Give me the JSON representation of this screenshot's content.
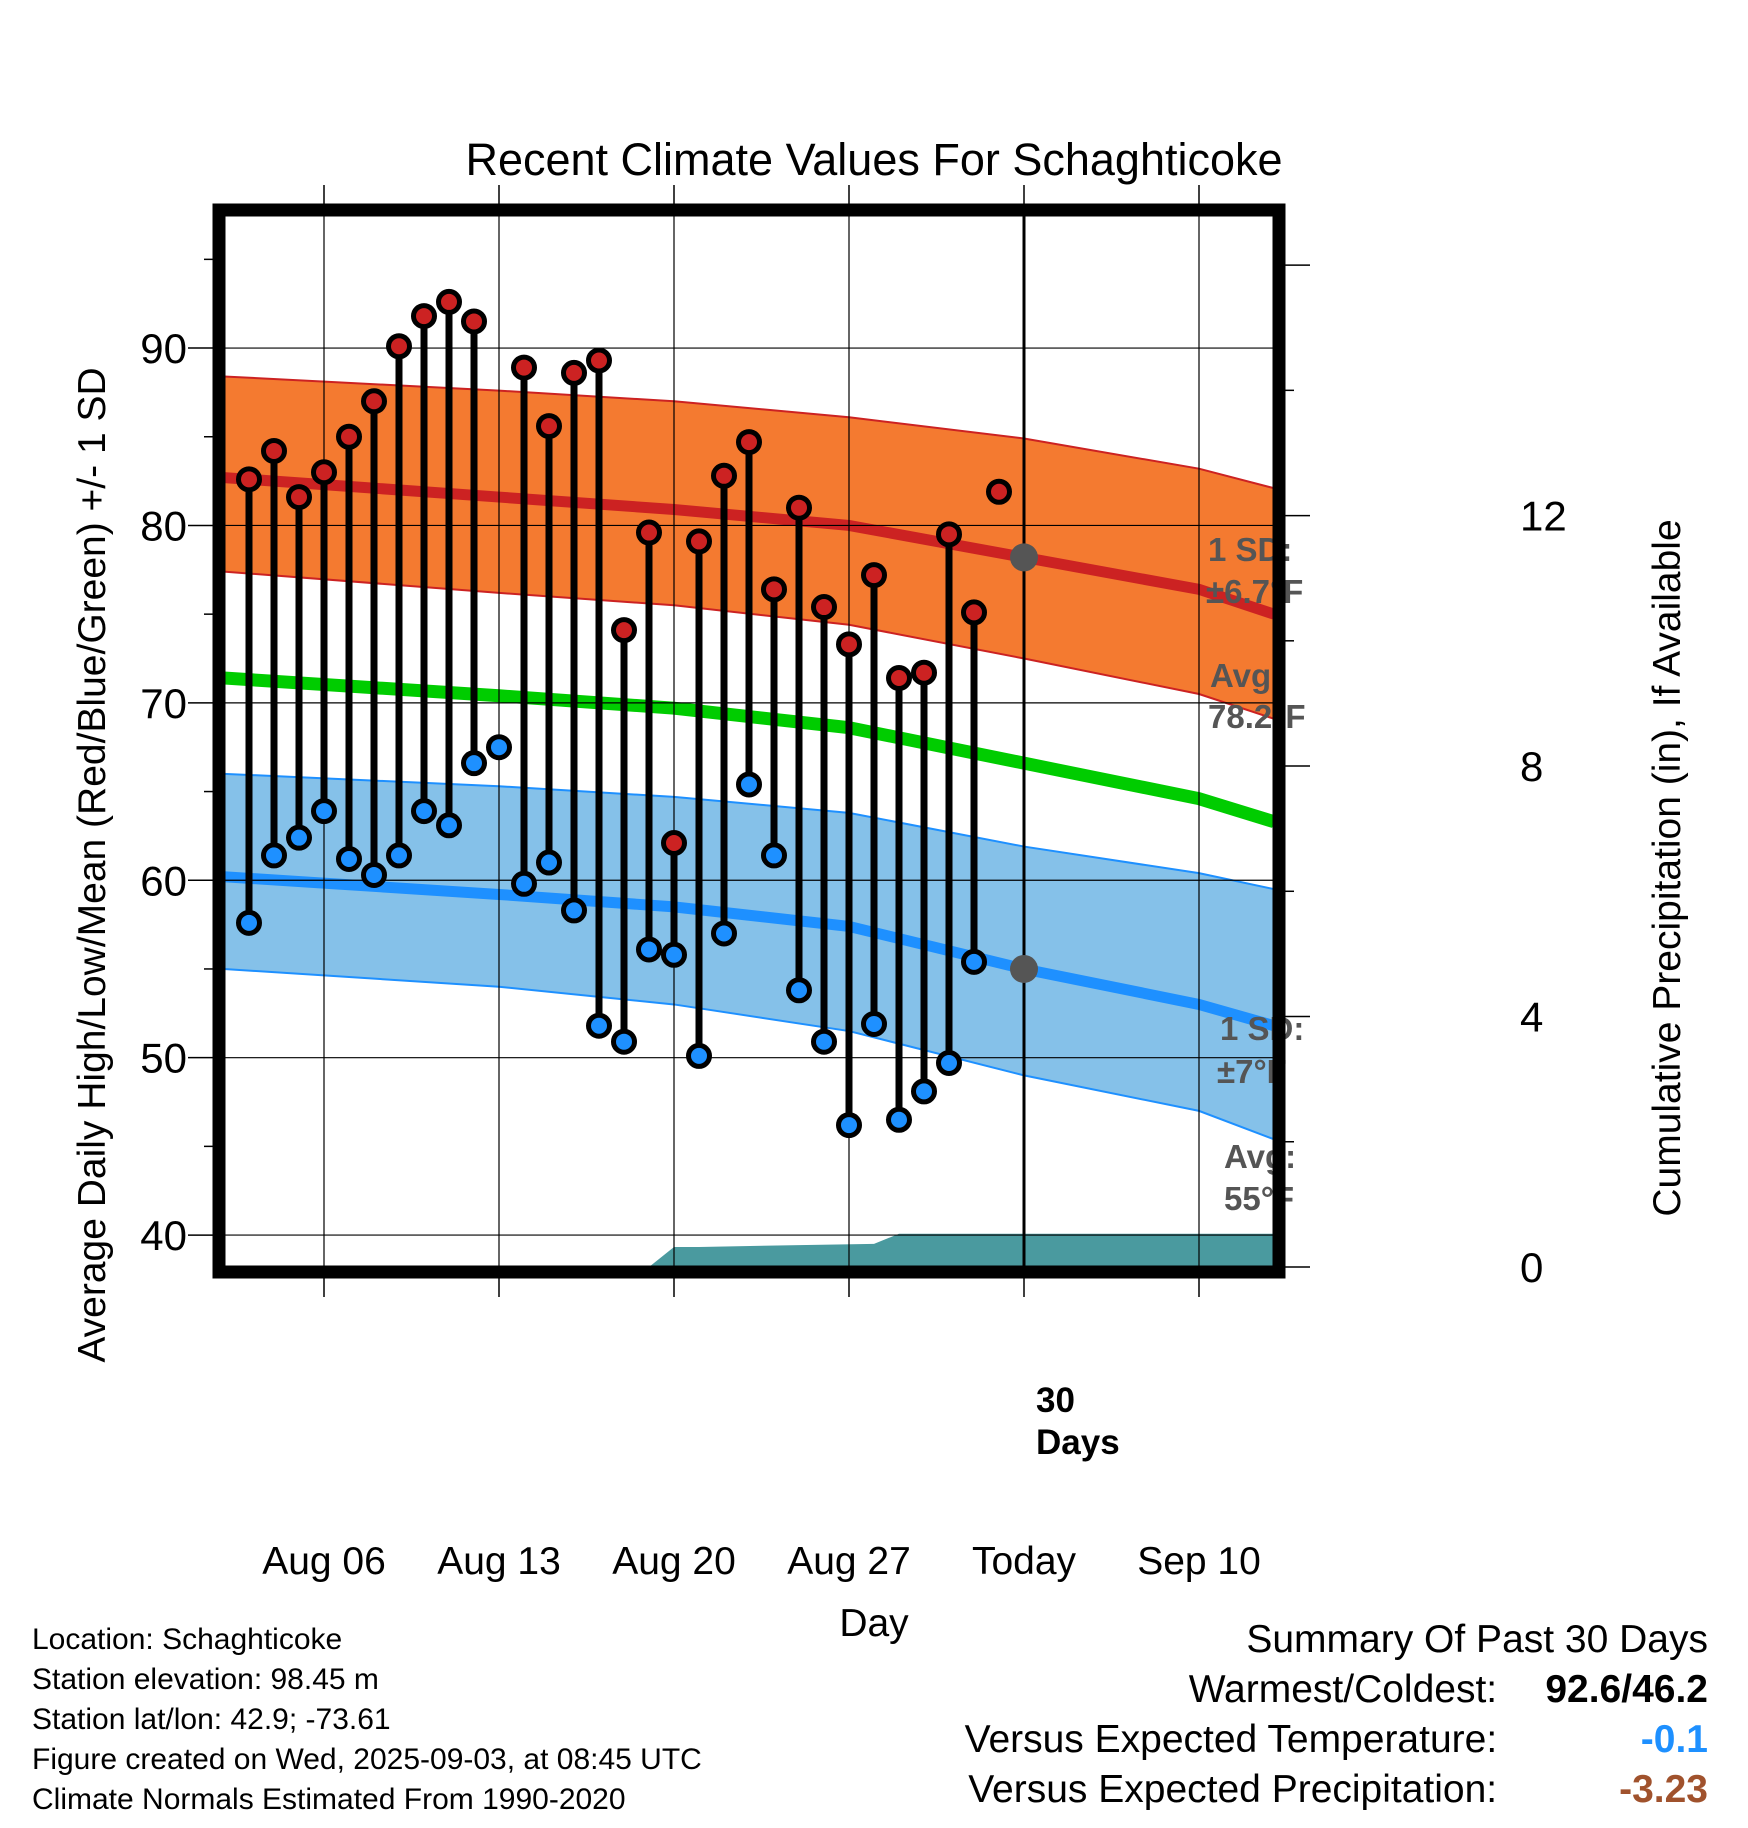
{
  "chart_data": {
    "type": "line",
    "title": "Recent Climate Values For Schaghticoke",
    "xlabel": "Day",
    "ylabel": "Average Daily High/Low/Mean (Red/Blue/Green) +/- 1 SD",
    "y2label": "Cumulative Precipitation (in), If Available",
    "ylim": [
      38.2,
      97.5
    ],
    "y_ticks": [
      40,
      50,
      60,
      70,
      80,
      90
    ],
    "y2lim": [
      0,
      16.8
    ],
    "y2_ticks": [
      0,
      4,
      8,
      12
    ],
    "xlim": [
      "2025-08-02",
      "2025-09-13"
    ],
    "x_ticks": [
      {
        "date": "2025-08-06",
        "label": "Aug 06"
      },
      {
        "date": "2025-08-13",
        "label": "Aug 13"
      },
      {
        "date": "2025-08-20",
        "label": "Aug 20"
      },
      {
        "date": "2025-08-27",
        "label": "Aug 27"
      },
      {
        "date": "2025-09-03",
        "label": "Today"
      },
      {
        "date": "2025-09-10",
        "label": "Sep 10"
      }
    ],
    "grid": true,
    "today": "2025-09-03",
    "today_marker": {
      "line1": "30",
      "line2": "Days"
    },
    "series": [
      {
        "name": "High",
        "color": "#cc2222",
        "dates": [
          "2025-08-03",
          "2025-08-04",
          "2025-08-05",
          "2025-08-06",
          "2025-08-07",
          "2025-08-08",
          "2025-08-09",
          "2025-08-10",
          "2025-08-11",
          "2025-08-12",
          "2025-08-13",
          "2025-08-14",
          "2025-08-15",
          "2025-08-16",
          "2025-08-17",
          "2025-08-18",
          "2025-08-19",
          "2025-08-20",
          "2025-08-21",
          "2025-08-22",
          "2025-08-23",
          "2025-08-24",
          "2025-08-25",
          "2025-08-26",
          "2025-08-27",
          "2025-08-28",
          "2025-08-29",
          "2025-08-30",
          "2025-08-31",
          "2025-09-01",
          "2025-09-02"
        ],
        "values": [
          82.6,
          84.2,
          81.6,
          83.0,
          85.0,
          87.0,
          90.1,
          91.8,
          92.6,
          91.5,
          null,
          88.9,
          85.6,
          88.6,
          89.3,
          74.1,
          79.6,
          62.1,
          79.1,
          82.8,
          84.7,
          76.4,
          81.0,
          75.4,
          73.3,
          77.2,
          71.4,
          71.7,
          79.5,
          75.1,
          81.9
        ]
      },
      {
        "name": "Low",
        "color": "#1e90ff",
        "dates": [
          "2025-08-03",
          "2025-08-04",
          "2025-08-05",
          "2025-08-06",
          "2025-08-07",
          "2025-08-08",
          "2025-08-09",
          "2025-08-10",
          "2025-08-11",
          "2025-08-12",
          "2025-08-13",
          "2025-08-14",
          "2025-08-15",
          "2025-08-16",
          "2025-08-17",
          "2025-08-18",
          "2025-08-19",
          "2025-08-20",
          "2025-08-21",
          "2025-08-22",
          "2025-08-23",
          "2025-08-24",
          "2025-08-25",
          "2025-08-26",
          "2025-08-27",
          "2025-08-28",
          "2025-08-29",
          "2025-08-30",
          "2025-08-31",
          "2025-09-01",
          "2025-09-02"
        ],
        "values": [
          57.6,
          61.4,
          62.4,
          63.9,
          61.2,
          60.3,
          61.4,
          63.9,
          63.1,
          66.6,
          67.5,
          59.8,
          61.0,
          58.3,
          51.8,
          50.9,
          56.1,
          55.8,
          50.1,
          57.0,
          65.4,
          61.4,
          53.8,
          50.9,
          46.2,
          51.9,
          46.5,
          48.1,
          49.7,
          55.4,
          null
        ]
      },
      {
        "name": "Normal High",
        "color": "#cc2222",
        "dates": [
          "2025-08-02",
          "2025-08-13",
          "2025-08-20",
          "2025-08-27",
          "2025-09-03",
          "2025-09-10",
          "2025-09-13"
        ],
        "values": [
          82.7,
          81.6,
          80.9,
          80.0,
          78.2,
          76.4,
          75.0
        ]
      },
      {
        "name": "Normal High +1 SD",
        "color": "#cc2222",
        "dates": [
          "2025-08-02",
          "2025-08-13",
          "2025-08-20",
          "2025-08-27",
          "2025-09-03",
          "2025-09-10",
          "2025-09-13"
        ],
        "values": [
          88.4,
          87.6,
          87.0,
          86.1,
          84.9,
          83.2,
          82.1
        ]
      },
      {
        "name": "Normal High -1 SD",
        "color": "#cc2222",
        "dates": [
          "2025-08-02",
          "2025-08-13",
          "2025-08-20",
          "2025-08-27",
          "2025-09-03",
          "2025-09-10",
          "2025-09-13"
        ],
        "values": [
          77.4,
          76.2,
          75.5,
          74.4,
          72.5,
          70.5,
          69.1
        ]
      },
      {
        "name": "Normal Mean",
        "color": "#00cc00",
        "dates": [
          "2025-08-02",
          "2025-08-13",
          "2025-08-20",
          "2025-08-27",
          "2025-09-03",
          "2025-09-10",
          "2025-09-13"
        ],
        "values": [
          71.4,
          70.4,
          69.7,
          68.6,
          66.6,
          64.6,
          63.3
        ]
      },
      {
        "name": "Normal Low",
        "color": "#1e90ff",
        "dates": [
          "2025-08-02",
          "2025-08-13",
          "2025-08-20",
          "2025-08-27",
          "2025-09-03",
          "2025-09-10",
          "2025-09-13"
        ],
        "values": [
          60.2,
          59.2,
          58.5,
          57.4,
          55.0,
          53.0,
          51.8
        ]
      },
      {
        "name": "Normal Low +1 SD",
        "color": "#1e90ff",
        "dates": [
          "2025-08-02",
          "2025-08-13",
          "2025-08-20",
          "2025-08-27",
          "2025-09-03",
          "2025-09-10",
          "2025-09-13"
        ],
        "values": [
          66.0,
          65.3,
          64.7,
          63.8,
          61.9,
          60.4,
          59.5
        ]
      },
      {
        "name": "Normal Low -1 SD",
        "color": "#1e90ff",
        "dates": [
          "2025-08-02",
          "2025-08-13",
          "2025-08-20",
          "2025-08-27",
          "2025-09-03",
          "2025-09-10",
          "2025-09-13"
        ],
        "values": [
          55.0,
          54.0,
          53.0,
          51.5,
          49.0,
          47.0,
          45.4
        ]
      },
      {
        "name": "Cumulative Precipitation",
        "color": "#4a9a9f",
        "dates": [
          "2025-08-02",
          "2025-08-19",
          "2025-08-20",
          "2025-08-21",
          "2025-08-25",
          "2025-08-28",
          "2025-08-29",
          "2025-09-03"
        ],
        "values": [
          0,
          0,
          0.32,
          0.32,
          0.35,
          0.37,
          0.53,
          0.53
        ]
      }
    ],
    "annotations": {
      "high_sd": {
        "line1": "1 SD:",
        "line2": "±6.7°F"
      },
      "high_avg": {
        "line1": "Avg:",
        "line2": "78.2°F"
      },
      "low_sd": {
        "line1": "1 SD:",
        "line2": "±7°F"
      },
      "low_avg": {
        "line1": "Avg:",
        "line2": "55°F"
      }
    }
  },
  "colors": {
    "high_band": "#f47a30",
    "low_band": "#85c1e9",
    "high_line": "#cc2222",
    "low_line": "#1e90ff",
    "mean_line": "#00cc00",
    "precip": "#4a9a9f",
    "annotation": "#555555",
    "dep_temp": "#1e90ff",
    "dep_precip": "#a0522d"
  },
  "footer": {
    "location": "Location: Schaghticoke",
    "elevation": "Station elevation: 98.45 m",
    "latlon": "Station lat/lon: 42.9; -73.61",
    "created": "Figure created on Wed, 2025-09-03, at 08:45 UTC",
    "normals": "Climate Normals Estimated From 1990-2020"
  },
  "summary": {
    "title": "Summary Of Past 30 Days",
    "warm_cold_label": "Warmest/Coldest:",
    "warm_cold_value": "92.6/46.2",
    "temp_label": "Versus Expected Temperature:",
    "temp_value": "-0.1",
    "precip_label": "Versus Expected Precipitation:",
    "precip_value": "-3.23"
  }
}
